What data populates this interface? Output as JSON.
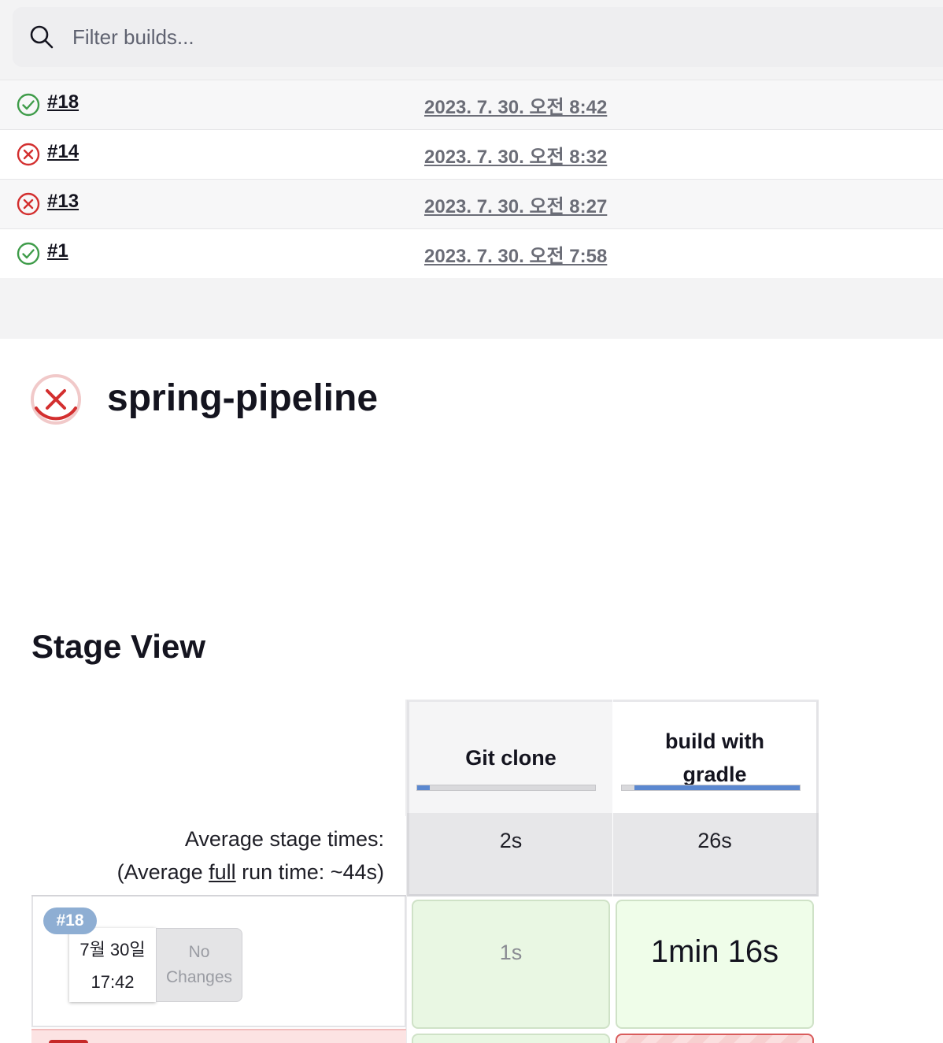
{
  "search": {
    "placeholder": "Filter builds...",
    "icon": "search-icon"
  },
  "builds": [
    {
      "number": "#18",
      "status": "success",
      "date": "2023. 7. 30. 오전 8:42"
    },
    {
      "number": "#14",
      "status": "failed",
      "date": "2023. 7. 30. 오전 8:32"
    },
    {
      "number": "#13",
      "status": "failed",
      "date": "2023. 7. 30. 오전 8:27"
    },
    {
      "number": "#1",
      "status": "success",
      "date": "2023. 7. 30. 오전 7:58"
    }
  ],
  "job": {
    "title": "spring-pipeline",
    "status": "failed"
  },
  "stage_view": {
    "title": "Stage View",
    "avg_label": "Average stage times:",
    "avg_full_prefix": "(Average ",
    "avg_full_link": "full",
    "avg_full_suffix": " run time: ~44s)",
    "stages": [
      {
        "name": "Git clone",
        "avg_time": "2s",
        "avg_fraction": 0.07
      },
      {
        "name": "build with gradle",
        "avg_time": "26s",
        "avg_fraction": 0.93
      }
    ],
    "runs": [
      {
        "badge": "#18",
        "date": "7월 30일",
        "time": "17:42",
        "changes": "No Changes",
        "cells": [
          "1s",
          "1min 16s"
        ]
      }
    ]
  },
  "colors": {
    "success": "#3f9c4a",
    "failed": "#d32f2f",
    "accent_bar": "#5b88d0",
    "badge": "#8eaed3"
  }
}
